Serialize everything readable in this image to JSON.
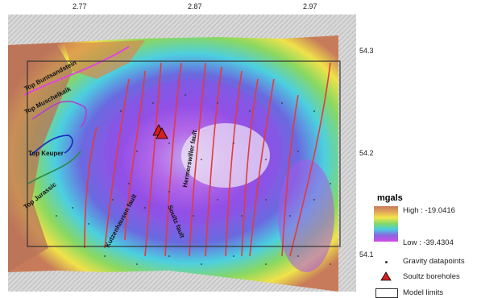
{
  "axis": {
    "x_ticks": [
      "2.77",
      "2.87",
      "2.97"
    ],
    "y_ticks": [
      "54.3",
      "54.2",
      "54.1"
    ]
  },
  "map_labels": {
    "top_buntsandstein": "Top Buntsandstein",
    "top_muschelkalk": "Top Muschelkalk",
    "top_keuper": "Top Keuper",
    "top_jurassic": "Top Jurassic",
    "kutzenhausen_fault": "Kutzenhausen fault",
    "soultz_fault": "Soultz fault",
    "hermerswiller_fault": "Hermerswiller fault"
  },
  "legend": {
    "title": "mgals",
    "high": "High : -19.0416",
    "low": "Low : -39.4304",
    "gravity": "Gravity datapoints",
    "boreholes": "Soultz boreholes",
    "model": "Model limits"
  },
  "colors": {
    "high": "#c77b5a",
    "low": "#d04ae8",
    "fault": "#e23b3b",
    "borehole": "#d42020"
  }
}
